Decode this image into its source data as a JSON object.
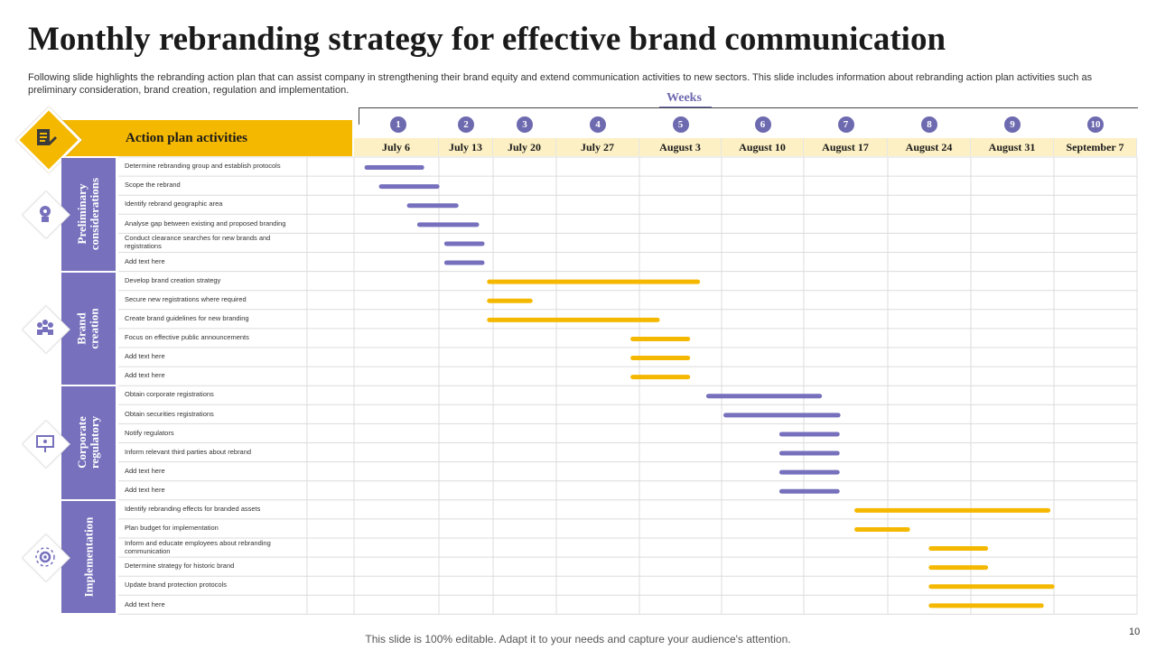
{
  "title": "Monthly rebranding strategy for effective brand communication",
  "subtitle": "Following slide highlights the rebranding action plan that can assist company in strengthening their brand equity and extend communication activities to new sectors. This slide includes information about rebranding action plan activities such as preliminary consideration, brand creation, regulation and implementation.",
  "weeks_label": "Weeks",
  "header_label": "Action plan activities",
  "footer": "This slide is 100% editable. Adapt it to your needs and capture your audience's attention.",
  "page_number": "10",
  "colors": {
    "purple": "#7670bd",
    "yellow": "#f5b800",
    "header_bg": "#fdf0c4"
  },
  "chart_data": {
    "type": "gantt",
    "title": "Monthly rebranding strategy for effective brand communication",
    "x_axis": {
      "label": "Weeks",
      "week_numbers": [
        "1",
        "2",
        "3",
        "4",
        "5",
        "6",
        "7",
        "8",
        "9",
        "10"
      ],
      "dates": [
        "July 6",
        "July 13",
        "July 20",
        "July 27",
        "August 3",
        "August 10",
        "August 17",
        "August 24",
        "August 31",
        "September 7"
      ],
      "range": [
        0,
        10
      ],
      "unit": "week index (0 = start of week 1)"
    },
    "groups": [
      {
        "name": "Preliminary\nconsiderations",
        "icon": "head-gear-icon",
        "color": "purple",
        "tasks": [
          {
            "label": "Determine rebranding group and establish protocols",
            "start": 0.15,
            "end": 0.8
          },
          {
            "label": "Scope the rebrand",
            "start": 0.32,
            "end": 0.98
          },
          {
            "label": "Identify rebrand geographic area",
            "start": 0.65,
            "end": 1.32
          },
          {
            "label": "Analyse gap between existing and proposed branding",
            "start": 0.77,
            "end": 1.7
          },
          {
            "label": "Conduct clearance searches for new brands and registrations",
            "start": 1.14,
            "end": 1.8
          },
          {
            "label": "Add text here",
            "start": 1.14,
            "end": 1.8
          }
        ]
      },
      {
        "name": "Brand\ncreation",
        "icon": "team-icon",
        "color": "yellow",
        "tasks": [
          {
            "label": "Develop brand creation strategy",
            "start": 1.93,
            "end": 4.71
          },
          {
            "label": "Secure new registrations where required",
            "start": 1.93,
            "end": 2.59
          },
          {
            "label": "Create brand guidelines for new branding",
            "start": 1.93,
            "end": 4.22
          },
          {
            "label": "Focus on effective public announcements",
            "start": 3.92,
            "end": 4.59
          },
          {
            "label": "Add text here",
            "start": 3.92,
            "end": 4.59
          },
          {
            "label": "Add text here",
            "start": 3.92,
            "end": 4.59
          }
        ]
      },
      {
        "name": "Corporate\nregulatory",
        "icon": "presentation-icon",
        "color": "purple",
        "tasks": [
          {
            "label": "Obtain corporate registrations",
            "start": 4.84,
            "end": 6.19
          },
          {
            "label": "Obtain securities registrations",
            "start": 5.05,
            "end": 6.41
          },
          {
            "label": "Notify regulators",
            "start": 5.73,
            "end": 6.4
          },
          {
            "label": "Inform relevant third parties about rebrand",
            "start": 5.73,
            "end": 6.4
          },
          {
            "label": "Add text here",
            "start": 5.73,
            "end": 6.4
          },
          {
            "label": "Add text here",
            "start": 5.73,
            "end": 6.4
          }
        ]
      },
      {
        "name": "Implementation",
        "icon": "gear-network-icon",
        "color": "yellow",
        "tasks": [
          {
            "label": "Identify rebranding effects for branded assets",
            "start": 6.63,
            "end": 8.93
          },
          {
            "label": "Plan budget for implementation",
            "start": 6.63,
            "end": 7.24
          },
          {
            "label": "Inform and educate employees about rebranding communication",
            "start": 7.52,
            "end": 8.18
          },
          {
            "label": "Determine strategy for historic brand",
            "start": 7.52,
            "end": 8.18
          },
          {
            "label": "Update brand protection protocols",
            "start": 7.52,
            "end": 8.98
          },
          {
            "label": "Add text here",
            "start": 7.52,
            "end": 8.85
          }
        ]
      }
    ]
  }
}
